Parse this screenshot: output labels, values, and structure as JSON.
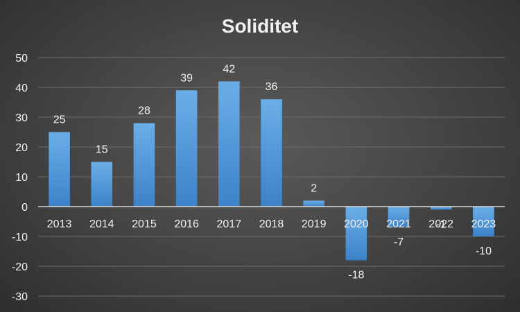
{
  "chart_data": {
    "type": "bar",
    "title": "Soliditet",
    "categories": [
      "2013",
      "2014",
      "2015",
      "2016",
      "2017",
      "2018",
      "2019",
      "2020",
      "2021",
      "2022",
      "2023"
    ],
    "values": [
      25,
      15,
      28,
      39,
      42,
      36,
      2,
      -18,
      -7,
      -1,
      -10
    ],
    "data_labels": [
      "25",
      "15",
      "28",
      "39",
      "42",
      "36",
      "2",
      "-18",
      "-7",
      "-1",
      "-10"
    ],
    "y_ticks": [
      "50",
      "40",
      "30",
      "20",
      "10",
      "0",
      "-10",
      "-20",
      "-30"
    ],
    "xlabel": "",
    "ylabel": "",
    "ylim": [
      -30,
      50
    ],
    "grid": true,
    "legend": "none",
    "colors": {
      "bar_top": "#6aaee8",
      "bar_bottom": "#3d82c8",
      "text": "#f2f2f2",
      "grid": "#6e6e6e",
      "axis": "#d9d9d9"
    }
  }
}
